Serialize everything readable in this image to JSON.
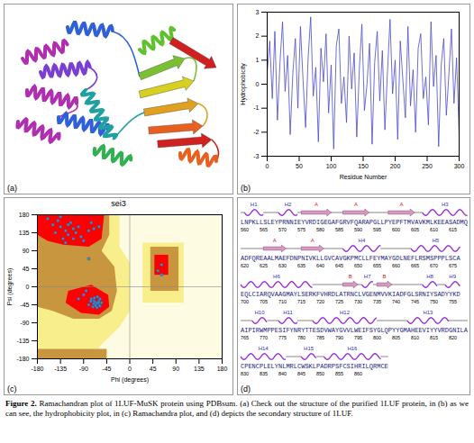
{
  "letters": [
    "(a)",
    "(b)",
    "(c)",
    "(d)"
  ],
  "chart_data": [
    {
      "type": "line",
      "x_label": "Residue Number",
      "y_label": "Hydrophobicity",
      "color": "#4a4ac8",
      "x": [
        0,
        4,
        8,
        12,
        16,
        20,
        24,
        28,
        32,
        36,
        40,
        44,
        48,
        52,
        56,
        60,
        64,
        68,
        72,
        76,
        80,
        84,
        88,
        92,
        96,
        100,
        104,
        108,
        112,
        116,
        120,
        124,
        128,
        132,
        136,
        140,
        144,
        148,
        152,
        156,
        160,
        164,
        168,
        172,
        176,
        180,
        184,
        188,
        192,
        196,
        200,
        204,
        208,
        212,
        216,
        220,
        224,
        228,
        232,
        236,
        240,
        244,
        248,
        252,
        256,
        260,
        264,
        268,
        272,
        276,
        280,
        284,
        288,
        292,
        296,
        300
      ],
      "values": [
        0.5,
        1.8,
        -0.6,
        2.2,
        -1.5,
        0.9,
        2.6,
        -0.3,
        1.2,
        -2.1,
        0.4,
        1.9,
        -1.0,
        2.4,
        0.2,
        -1.8,
        1.1,
        2.8,
        -0.5,
        0.7,
        -2.4,
        1.5,
        0.1,
        2.1,
        -1.2,
        0.8,
        -2.7,
        1.6,
        2.3,
        -0.8,
        0.3,
        -1.6,
        2.0,
        -0.2,
        1.3,
        -2.2,
        0.6,
        2.5,
        -1.1,
        0.0,
        1.7,
        -2.5,
        0.9,
        2.2,
        -0.7,
        1.4,
        -1.9,
        0.5,
        2.7,
        -0.4,
        1.0,
        -2.3,
        1.8,
        0.2,
        -1.4,
        2.4,
        -0.9,
        0.6,
        -2.0,
        1.5,
        2.1,
        -0.6,
        0.3,
        -1.7,
        2.6,
        -0.1,
        1.2,
        -2.6,
        0.8,
        1.9,
        -1.3,
        0.4,
        2.3,
        -0.8,
        1.1,
        -2.1
      ],
      "xlim": [
        0,
        300
      ],
      "ylim": [
        -3,
        3
      ],
      "xticks": [
        0,
        50,
        100,
        150,
        200,
        250,
        300
      ],
      "yticks": [
        -3,
        -2,
        -1,
        0,
        1,
        2,
        3
      ]
    },
    {
      "type": "scatter",
      "title": "sei3",
      "x_label": "Phi (degrees)",
      "y_label": "Psi (degrees)",
      "color": "#3b8fd8",
      "marker": "square",
      "x": [
        -120,
        -135,
        -110,
        -140,
        -95,
        -125,
        -150,
        -105,
        -130,
        -115,
        -80,
        -145,
        -100,
        -125,
        -90,
        -160,
        -70,
        -135,
        -110,
        -120,
        -60,
        -75,
        -65,
        -60,
        -70,
        -62,
        -75,
        -58,
        -68,
        -80,
        -63,
        -55,
        -72,
        -66,
        -90,
        -60,
        -85,
        -64,
        -70,
        -58,
        -100,
        -67,
        -61,
        -76,
        -69,
        -64,
        55,
        62,
        62,
        -80
      ],
      "values": [
        130,
        150,
        120,
        165,
        125,
        140,
        155,
        135,
        120,
        160,
        140,
        135,
        150,
        110,
        115,
        170,
        145,
        175,
        145,
        155,
        150,
        160,
        -40,
        -45,
        -35,
        -42,
        -30,
        -48,
        -38,
        -45,
        -25,
        -40,
        -50,
        -44,
        -20,
        -35,
        -10,
        -41,
        -42,
        -30,
        -30,
        -47,
        -39,
        -36,
        -28,
        -52,
        40,
        30,
        55,
        70
      ],
      "xlim": [
        -180,
        180
      ],
      "ylim": [
        -180,
        180
      ],
      "xticks": [
        -180,
        -135,
        -90,
        -45,
        0,
        45,
        90,
        135,
        180
      ],
      "yticks": [
        -180,
        -135,
        -90,
        -45,
        0,
        45,
        90,
        135,
        180
      ],
      "regions": [
        {
          "color": "#fdfbe1",
          "points": [
            [
              -180,
              -180
            ],
            [
              180,
              -180
            ],
            [
              180,
              180
            ],
            [
              -180,
              180
            ]
          ]
        },
        {
          "color": "#f8ee8c",
          "points": [
            [
              -180,
              180
            ],
            [
              -20,
              180
            ],
            [
              -20,
              100
            ],
            [
              0,
              60
            ],
            [
              0,
              -60
            ],
            [
              -20,
              -100
            ],
            [
              -60,
              -150
            ],
            [
              -60,
              -180
            ],
            [
              -180,
              -180
            ]
          ]
        },
        {
          "color": "#f8ee8c",
          "points": [
            [
              25,
              110
            ],
            [
              105,
              110
            ],
            [
              105,
              -40
            ],
            [
              25,
              -40
            ]
          ]
        },
        {
          "color": "#c8963e",
          "points": [
            [
              -180,
              180
            ],
            [
              -40,
              180
            ],
            [
              -40,
              130
            ],
            [
              -55,
              90
            ],
            [
              -30,
              50
            ],
            [
              -25,
              -10
            ],
            [
              -35,
              -60
            ],
            [
              -60,
              -80
            ],
            [
              -110,
              -80
            ],
            [
              -150,
              -60
            ],
            [
              -180,
              -50
            ]
          ]
        },
        {
          "color": "#c8963e",
          "points": [
            [
              -180,
              -180
            ],
            [
              -45,
              -180
            ],
            [
              -45,
              -155
            ],
            [
              -180,
              -155
            ]
          ]
        },
        {
          "color": "#c8963e",
          "points": [
            [
              40,
              100
            ],
            [
              95,
              100
            ],
            [
              95,
              -10
            ],
            [
              40,
              -10
            ]
          ]
        },
        {
          "color": "#ff0000",
          "points": [
            [
              -180,
              180
            ],
            [
              -50,
              180
            ],
            [
              -55,
              120
            ],
            [
              -80,
              100
            ],
            [
              -130,
              105
            ],
            [
              -160,
              115
            ],
            [
              -180,
              130
            ]
          ]
        },
        {
          "color": "#ff0000",
          "points": [
            [
              -120,
              -10
            ],
            [
              -75,
              5
            ],
            [
              -42,
              -20
            ],
            [
              -40,
              -50
            ],
            [
              -60,
              -70
            ],
            [
              -95,
              -65
            ],
            [
              -125,
              -40
            ]
          ]
        },
        {
          "color": "#ff0000",
          "points": [
            [
              48,
              80
            ],
            [
              75,
              80
            ],
            [
              75,
              30
            ],
            [
              48,
              30
            ]
          ]
        }
      ]
    }
  ],
  "secondary_structure": {
    "rows": [
      {
        "sequence": "LNPKLLSLEYPRNNIEYVRDIGEGAFGRVFQARAPGLLPYEPFTMVAVKMLKEEASADMQ",
        "numbers": [
          560,
          565,
          570,
          575,
          580,
          585,
          590,
          595,
          600,
          605,
          610,
          615
        ],
        "elements": [
          {
            "label": "H1",
            "kind": "helix",
            "from": 561,
            "to": 565
          },
          {
            "label": "H2",
            "kind": "helix",
            "from": 570,
            "to": 574
          },
          {
            "label": "A",
            "kind": "strand",
            "from": 576,
            "to": 583
          },
          {
            "label": "A",
            "kind": "strand",
            "from": 587,
            "to": 593
          },
          {
            "label": "A",
            "kind": "strand",
            "from": 599,
            "to": 605
          },
          {
            "label": "H3",
            "kind": "helix",
            "from": 608,
            "to": 619
          }
        ]
      },
      {
        "sequence": "ADFQREAALMAEFDNPNIVKLLGVCAVGKPMCLLFEYMAYGDLNEFLRSMSPPPLSCA",
        "numbers": [
          620,
          625,
          630,
          635,
          640,
          645,
          650,
          655,
          660,
          665,
          670,
          675
        ],
        "elements": [
          {
            "label": "A",
            "kind": "strand",
            "from": 626,
            "to": 631
          },
          {
            "label": "A",
            "kind": "strand",
            "from": 636,
            "to": 641
          },
          {
            "label": "H4",
            "kind": "helix",
            "from": 647,
            "to": 656
          },
          {
            "label": "H5",
            "kind": "helix",
            "from": 665,
            "to": 677
          }
        ]
      },
      {
        "sequence": "EQLCIARQVAAGMAYLSERKFVHRDLATRNCLVGENMVVKIADFGLSRNIYSADYYKD",
        "numbers": [
          700,
          705,
          710,
          715,
          720,
          725,
          730,
          735,
          740,
          745,
          750,
          755
        ],
        "elements": [
          {
            "label": "H6",
            "kind": "helix",
            "from": 700,
            "to": 718
          },
          {
            "label": "B",
            "kind": "strand",
            "from": 727,
            "to": 730
          },
          {
            "label": "H7",
            "kind": "helix",
            "from": 732,
            "to": 734
          },
          {
            "label": "B",
            "kind": "strand",
            "from": 736,
            "to": 739
          },
          {
            "label": "H8",
            "kind": "helix",
            "from": 748,
            "to": 751
          },
          {
            "label": "H9",
            "kind": "helix",
            "from": 754,
            "to": 757
          }
        ]
      },
      {
        "sequence": "AIPIRWMPPESIFYNRYTTESDVWAYGVVLWEIFSYGLQPYYGMAHEEVIYYVRDGNILA",
        "numbers": [
          765,
          770,
          775,
          780,
          785,
          790,
          795,
          800,
          805,
          810,
          815,
          820
        ],
        "elements": [
          {
            "label": "H10",
            "kind": "helix",
            "from": 768,
            "to": 771
          },
          {
            "label": "H11",
            "kind": "helix",
            "from": 775,
            "to": 779
          },
          {
            "label": "H12",
            "kind": "helix",
            "from": 784,
            "to": 800
          },
          {
            "label": "H13",
            "kind": "helix",
            "from": 809,
            "to": 819
          }
        ]
      },
      {
        "sequence": "CPENCPLELYNLMRLCWSKLPADRPSFCSIHRILQRMCE",
        "numbers": [
          830,
          835,
          840,
          845,
          850,
          855,
          860
        ],
        "elements": [
          {
            "label": "H14",
            "kind": "helix",
            "from": 830,
            "to": 841
          },
          {
            "label": "H15",
            "kind": "helix",
            "from": 846,
            "to": 849
          },
          {
            "label": "H16",
            "kind": "helix",
            "from": 852,
            "to": 866
          }
        ]
      }
    ]
  },
  "caption": {
    "label": "Figure 2.",
    "text": "Ramachandran plot of 1LUF-MuSK protein using PDBsum. (a) Check out the structure of the purified 1LUF protein, in (b) as we can see, the hydrophobicity plot, in (c) Ramachandra plot, and (d) depicts the secondary structure of 1LUF."
  }
}
